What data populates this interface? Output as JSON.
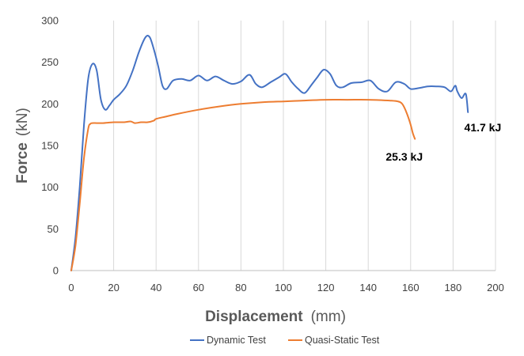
{
  "chart_data": {
    "type": "line",
    "title": "",
    "xlabel": {
      "main": "Displacement",
      "unit": "(mm)"
    },
    "ylabel": {
      "main": "Force",
      "unit": "(kN)"
    },
    "xlim": [
      0,
      200
    ],
    "ylim": [
      0,
      300
    ],
    "xticks": [
      0,
      20,
      40,
      60,
      80,
      100,
      120,
      140,
      160,
      180,
      200
    ],
    "yticks": [
      0,
      50,
      100,
      150,
      200,
      250,
      300
    ],
    "grid": "vertical",
    "legend": "bottom",
    "series": [
      {
        "name": "Dynamic Test",
        "color": "#4472C4",
        "x": [
          0,
          2,
          4,
          6,
          8,
          10,
          12,
          14,
          16,
          18,
          20,
          23,
          26,
          29,
          32,
          35,
          37,
          39,
          41,
          43,
          45,
          48,
          52,
          56,
          60,
          64,
          68,
          72,
          76,
          80,
          84,
          87,
          90,
          94,
          98,
          101,
          104,
          107,
          110,
          113,
          116,
          119,
          122,
          125,
          128,
          132,
          137,
          141,
          145,
          149,
          153,
          157,
          160,
          164,
          168,
          172,
          176,
          179,
          181,
          182,
          184,
          186,
          187
        ],
        "y": [
          0,
          40,
          100,
          175,
          230,
          248,
          240,
          205,
          193,
          198,
          205,
          212,
          222,
          240,
          263,
          280,
          280,
          265,
          245,
          222,
          218,
          228,
          230,
          228,
          234,
          228,
          233,
          228,
          224,
          227,
          235,
          224,
          220,
          226,
          232,
          236,
          226,
          218,
          213,
          222,
          232,
          241,
          236,
          222,
          220,
          225,
          226,
          228,
          218,
          215,
          226,
          224,
          218,
          219,
          221,
          221,
          220,
          215,
          222,
          215,
          207,
          212,
          190
        ]
      },
      {
        "name": "Quasi-Static Test",
        "color": "#ED7D31",
        "x": [
          0,
          2,
          4,
          6,
          8,
          9,
          10,
          12,
          15,
          20,
          25,
          28,
          30,
          33,
          36,
          39,
          40,
          45,
          50,
          60,
          70,
          80,
          90,
          100,
          110,
          120,
          130,
          140,
          150,
          154,
          156,
          158,
          160,
          161,
          162
        ],
        "y": [
          0,
          30,
          80,
          135,
          170,
          176,
          177,
          177,
          177,
          178,
          178,
          179,
          177,
          178,
          178,
          180,
          182,
          185,
          188,
          193,
          197,
          200,
          202,
          203,
          204,
          205,
          205,
          205,
          204,
          203,
          200,
          190,
          175,
          165,
          158
        ]
      }
    ],
    "annotations": [
      {
        "text": "41.7 kJ",
        "x": 194,
        "y": 167,
        "series": "Dynamic Test"
      },
      {
        "text": "25.3 kJ",
        "x": 157,
        "y": 132,
        "series": "Quasi-Static Test"
      }
    ]
  }
}
